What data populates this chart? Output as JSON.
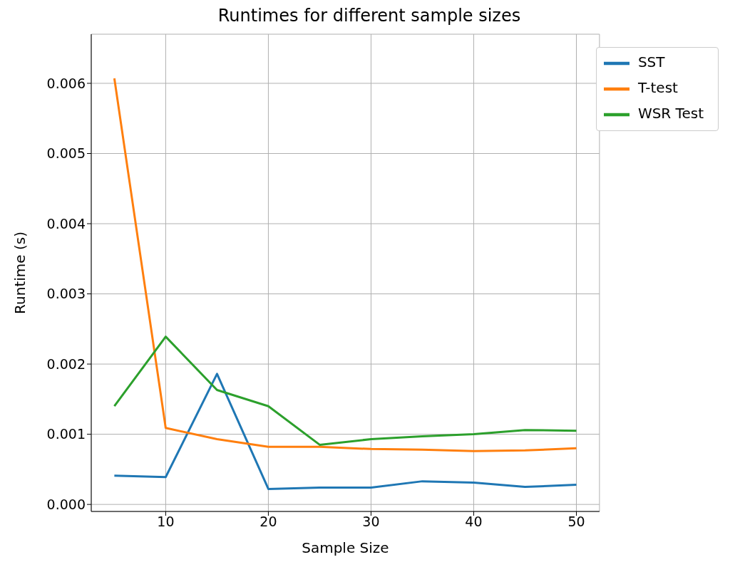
{
  "chart_data": {
    "type": "line",
    "title": "Runtimes for different sample sizes",
    "xlabel": "Sample Size",
    "ylabel": "Runtime (s)",
    "x": [
      5,
      10,
      15,
      20,
      25,
      30,
      35,
      40,
      45,
      50
    ],
    "series": [
      {
        "name": "SST",
        "color": "#1f77b4",
        "values": [
          0.00041,
          0.00039,
          0.00186,
          0.00022,
          0.00024,
          0.00024,
          0.00033,
          0.00031,
          0.00025,
          0.00028
        ]
      },
      {
        "name": "T-test",
        "color": "#ff7f0e",
        "values": [
          0.00607,
          0.00109,
          0.00093,
          0.00082,
          0.00082,
          0.00079,
          0.00078,
          0.00076,
          0.00077,
          0.0008
        ]
      },
      {
        "name": "WSR Test",
        "color": "#2ca02c",
        "values": [
          0.0014,
          0.00239,
          0.00163,
          0.0014,
          0.00085,
          0.00093,
          0.00097,
          0.001,
          0.00106,
          0.00105
        ]
      }
    ],
    "xlim": [
      2.75,
      52.25
    ],
    "xticks": [
      10,
      20,
      30,
      40,
      50
    ],
    "ylim": [
      -0.0001,
      0.0067
    ],
    "yticks": [
      {
        "value": 0,
        "label": "0.000"
      },
      {
        "value": 0.001,
        "label": "0.001"
      },
      {
        "value": 0.002,
        "label": "0.002"
      },
      {
        "value": 0.003,
        "label": "0.003"
      },
      {
        "value": 0.004,
        "label": "0.004"
      },
      {
        "value": 0.005,
        "label": "0.005"
      },
      {
        "value": 0.006,
        "label": "0.006"
      }
    ],
    "grid": true,
    "legend": "top right",
    "marker": "none",
    "line_style": "solid"
  }
}
